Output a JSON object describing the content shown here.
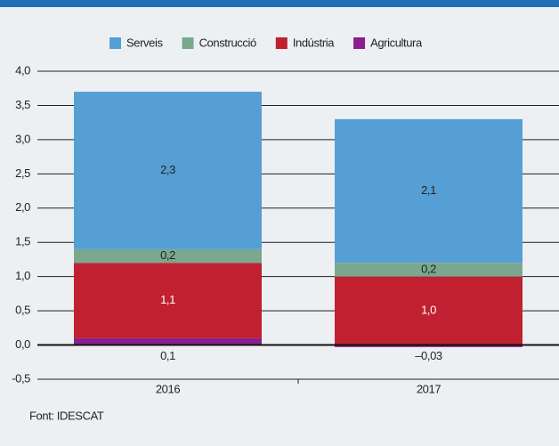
{
  "chart_data": {
    "type": "stacked_bar",
    "categories": [
      "2016",
      "2017"
    ],
    "series": [
      {
        "name": "Serveis",
        "color": "#559fd4",
        "label_color": "#222222",
        "values": [
          2.3,
          2.1
        ],
        "value_labels": [
          "2,3",
          "2,1"
        ]
      },
      {
        "name": "Construcció",
        "color": "#7aa88f",
        "label_color": "#222222",
        "values": [
          0.2,
          0.2
        ],
        "value_labels": [
          "0,2",
          "0,2"
        ]
      },
      {
        "name": "Indústria",
        "color": "#c0202f",
        "label_color": "#ffffff",
        "values": [
          1.1,
          1.0
        ],
        "value_labels": [
          "1,1",
          "1,0"
        ]
      },
      {
        "name": "Agricultura",
        "color": "#8b1e8c",
        "label_color": "#222222",
        "values": [
          0.1,
          -0.03
        ],
        "value_labels": [
          "0,1",
          "–0,03"
        ]
      }
    ],
    "ylim": [
      -0.5,
      4.0
    ],
    "yticks": [
      {
        "value": -0.5,
        "label": "-0,5"
      },
      {
        "value": 0,
        "label": "0,0"
      },
      {
        "value": 0.5,
        "label": "0,5"
      },
      {
        "value": 1.0,
        "label": "1,0"
      },
      {
        "value": 1.5,
        "label": "1,5"
      },
      {
        "value": 2.0,
        "label": "2,0"
      },
      {
        "value": 2.5,
        "label": "2,5"
      },
      {
        "value": 3.0,
        "label": "3,0"
      },
      {
        "value": 3.5,
        "label": "3,5"
      },
      {
        "value": 4.0,
        "label": "4,0"
      }
    ],
    "grid": true,
    "legend": "top",
    "source": "Font: IDESCAT"
  }
}
